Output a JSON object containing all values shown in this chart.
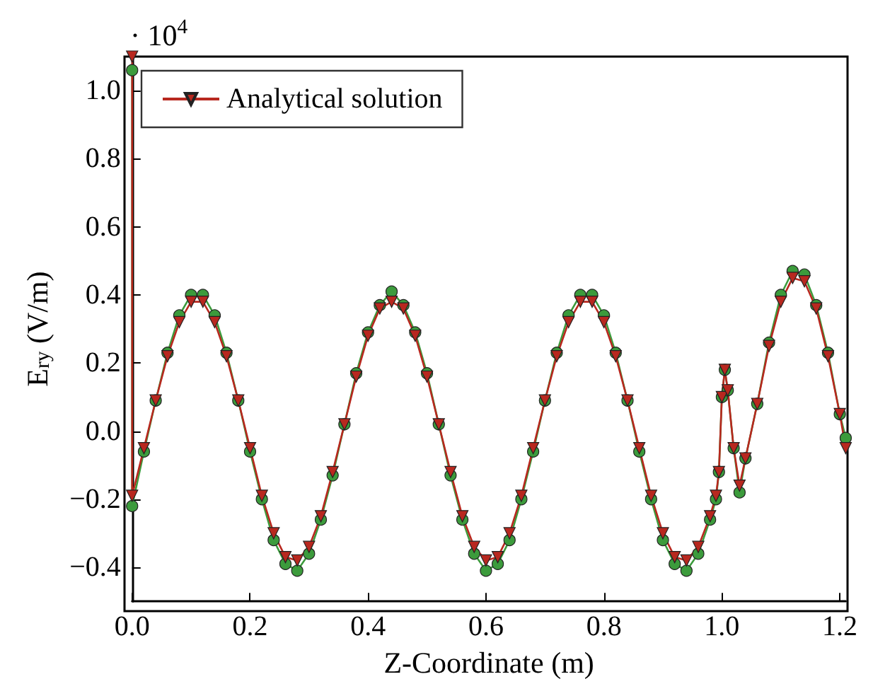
{
  "chart_data": {
    "type": "line",
    "xlabel": "Z-Coordinate (m)",
    "ylabel": "E$_{ry}$ (V/m)",
    "annotations": [
      "· 10$^{4}$"
    ],
    "xlim": [
      0,
      1.21
    ],
    "ylim": [
      -0.5,
      1.1
    ],
    "xticks": [
      {
        "value": 0,
        "label": "0.0"
      },
      {
        "value": 0.2,
        "label": "0.2"
      },
      {
        "value": 0.4,
        "label": "0.4"
      },
      {
        "value": 0.6,
        "label": "0.6"
      },
      {
        "value": 0.8,
        "label": "0.8"
      },
      {
        "value": 1,
        "label": "1.0"
      },
      {
        "value": 1.2,
        "label": "1.2"
      }
    ],
    "yticks": [
      {
        "value": -0.4,
        "label": "−0.4"
      },
      {
        "value": -0.2,
        "label": "−0.2"
      },
      {
        "value": 0,
        "label": "0.0"
      },
      {
        "value": 0.2,
        "label": "0.2"
      },
      {
        "value": 0.4,
        "label": "0.4"
      },
      {
        "value": 0.6,
        "label": "0.6"
      },
      {
        "value": 0.8,
        "label": "0.8"
      },
      {
        "value": 1,
        "label": "1.0"
      }
    ],
    "grid": false,
    "legend": "top left",
    "line_style": "solid",
    "series": [
      {
        "color": "#3c9b3c",
        "marker": "circle",
        "x": [
          0,
          0,
          0.02,
          0.04,
          0.06,
          0.08,
          0.1,
          0.12,
          0.14,
          0.16,
          0.18,
          0.2,
          0.22,
          0.24,
          0.26,
          0.28,
          0.3,
          0.32,
          0.34,
          0.36,
          0.38,
          0.4,
          0.42,
          0.44,
          0.46,
          0.48,
          0.5,
          0.52,
          0.54,
          0.56,
          0.58,
          0.6,
          0.62,
          0.64,
          0.66,
          0.68,
          0.7,
          0.72,
          0.74,
          0.76,
          0.78,
          0.8,
          0.82,
          0.84,
          0.86,
          0.88,
          0.9,
          0.92,
          0.94,
          0.96,
          0.98,
          0.99,
          0.995,
          1,
          1.005,
          1.01,
          1.02,
          1.03,
          1.04,
          1.06,
          1.08,
          1.1,
          1.12,
          1.14,
          1.16,
          1.18,
          1.2,
          1.21
        ],
        "values": [
          1.06,
          -0.22,
          -0.06,
          0.09,
          0.23,
          0.34,
          0.4,
          0.4,
          0.34,
          0.23,
          0.09,
          -0.06,
          -0.2,
          -0.32,
          -0.39,
          -0.41,
          -0.36,
          -0.26,
          -0.13,
          0.02,
          0.17,
          0.29,
          0.37,
          0.41,
          0.37,
          0.29,
          0.17,
          0.02,
          -0.13,
          -0.26,
          -0.36,
          -0.41,
          -0.39,
          -0.32,
          -0.2,
          -0.06,
          0.09,
          0.23,
          0.34,
          0.4,
          0.4,
          0.34,
          0.23,
          0.09,
          -0.06,
          -0.2,
          -0.32,
          -0.39,
          -0.41,
          -0.36,
          -0.26,
          -0.2,
          -0.12,
          0.1,
          0.18,
          0.12,
          -0.05,
          -0.18,
          -0.08,
          0.08,
          0.26,
          0.4,
          0.47,
          0.46,
          0.37,
          0.23,
          0.05,
          -0.02
        ]
      },
      {
        "name": "Analytical solution",
        "color": "#b8281f",
        "marker": "triangle",
        "x": [
          0,
          0,
          0.02,
          0.04,
          0.06,
          0.08,
          0.1,
          0.12,
          0.14,
          0.16,
          0.18,
          0.2,
          0.22,
          0.24,
          0.26,
          0.28,
          0.3,
          0.32,
          0.34,
          0.36,
          0.38,
          0.4,
          0.42,
          0.44,
          0.46,
          0.48,
          0.5,
          0.52,
          0.54,
          0.56,
          0.58,
          0.6,
          0.62,
          0.64,
          0.66,
          0.68,
          0.7,
          0.72,
          0.74,
          0.76,
          0.78,
          0.8,
          0.82,
          0.84,
          0.86,
          0.88,
          0.9,
          0.92,
          0.94,
          0.96,
          0.98,
          0.99,
          0.995,
          1,
          1.005,
          1.01,
          1.02,
          1.03,
          1.04,
          1.06,
          1.08,
          1.1,
          1.12,
          1.14,
          1.16,
          1.18,
          1.2,
          1.21
        ],
        "values": [
          1.1,
          -0.19,
          -0.05,
          0.09,
          0.22,
          0.32,
          0.38,
          0.38,
          0.32,
          0.22,
          0.09,
          -0.05,
          -0.19,
          -0.3,
          -0.37,
          -0.38,
          -0.34,
          -0.25,
          -0.12,
          0.02,
          0.16,
          0.28,
          0.36,
          0.38,
          0.36,
          0.28,
          0.16,
          0.02,
          -0.12,
          -0.25,
          -0.34,
          -0.38,
          -0.37,
          -0.3,
          -0.19,
          -0.05,
          0.09,
          0.22,
          0.32,
          0.38,
          0.38,
          0.32,
          0.22,
          0.09,
          -0.05,
          -0.19,
          -0.3,
          -0.37,
          -0.38,
          -0.34,
          -0.25,
          -0.19,
          -0.12,
          0.1,
          0.18,
          0.12,
          -0.05,
          -0.16,
          -0.08,
          0.08,
          0.25,
          0.38,
          0.45,
          0.44,
          0.36,
          0.22,
          0.05,
          -0.05
        ]
      }
    ]
  }
}
